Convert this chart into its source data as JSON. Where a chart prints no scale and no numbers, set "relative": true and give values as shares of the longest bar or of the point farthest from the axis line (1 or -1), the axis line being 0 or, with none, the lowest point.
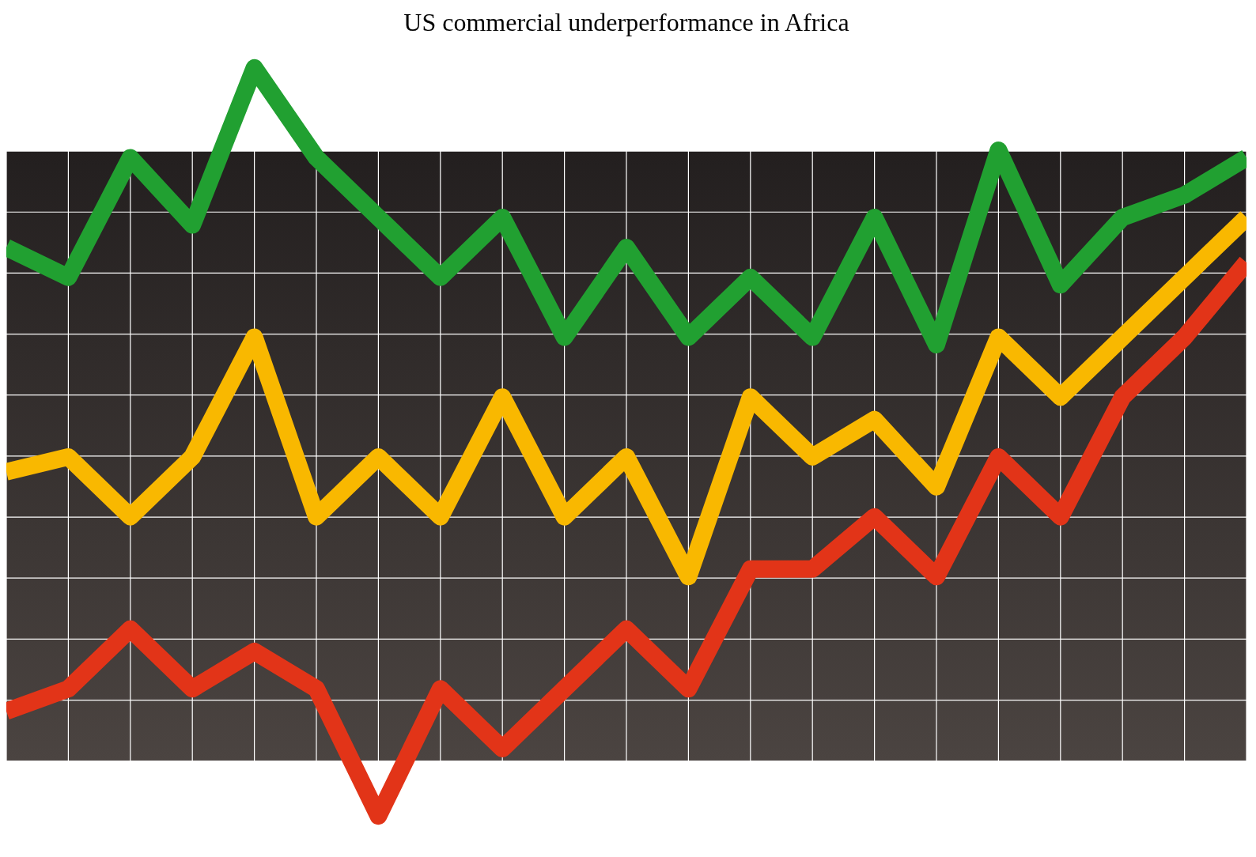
{
  "chart_data": {
    "type": "line",
    "title": "US commercial underperformance in Africa",
    "relative": true,
    "grid": true,
    "legend": false,
    "marker": "none",
    "line_style": "solid",
    "categories": [
      null,
      null,
      null,
      null,
      null,
      null,
      null,
      null,
      null,
      null,
      null,
      null,
      null,
      null,
      null,
      null,
      null,
      null,
      null,
      null,
      null
    ],
    "series": [
      {
        "color": "#21a031",
        "values": [
          0.76,
          0.72,
          0.88,
          0.79,
          1.0,
          0.88,
          0.8,
          0.72,
          0.8,
          0.64,
          0.76,
          0.64,
          0.72,
          0.64,
          0.8,
          0.63,
          0.89,
          0.71,
          0.8,
          0.83,
          0.88
        ]
      },
      {
        "color": "#f9b800",
        "values": [
          0.46,
          0.48,
          0.4,
          0.48,
          0.64,
          0.4,
          0.48,
          0.4,
          0.56,
          0.4,
          0.48,
          0.32,
          0.56,
          0.48,
          0.53,
          0.44,
          0.64,
          0.56,
          0.64,
          0.72,
          0.8
        ]
      },
      {
        "color": "#e23418",
        "values": [
          0.14,
          0.17,
          0.25,
          0.17,
          0.22,
          0.17,
          0.0,
          0.17,
          0.09,
          0.17,
          0.25,
          0.17,
          0.33,
          0.33,
          0.4,
          0.32,
          0.48,
          0.4,
          0.56,
          0.64,
          0.74
        ]
      }
    ]
  }
}
